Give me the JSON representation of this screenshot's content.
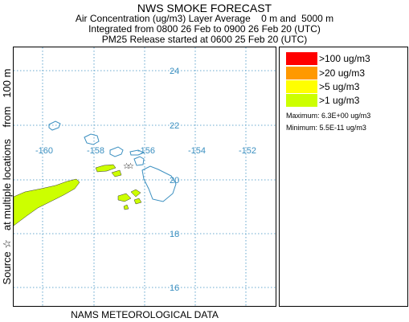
{
  "header": {
    "title": "NWS SMOKE FORECAST",
    "line2": "Air Concentration (ug/m3) Layer Average    0 m and  5000 m",
    "line3": "Integrated from 0800 26 Feb to 0900 26 Feb 20 (UTC)",
    "line4": "PM25 Release started at 0600 25 Feb 20 (UTC)"
  },
  "side_label": "Source ☆   at multiple locations    from   100 m",
  "footer": "NAMS METEOROLOGICAL DATA",
  "map": {
    "lat_labels": [
      "24",
      "22",
      "20",
      "18",
      "16"
    ],
    "lon_labels": [
      "-160",
      "-158",
      "-156",
      "-154",
      "-152"
    ],
    "coastline_color": "#3a8fc0",
    "grid_color": "#3a8fc0",
    "smoke_color": "#ccff00",
    "source_marker": "star-icon"
  },
  "legend": {
    "items": [
      {
        "label": ">100 ug/m3",
        "color": "#ff0000"
      },
      {
        "label": ">20 ug/m3",
        "color": "#ff9900"
      },
      {
        "label": ">5 ug/m3",
        "color": "#ffff00"
      },
      {
        "label": ">1 ug/m3",
        "color": "#ccff00"
      }
    ],
    "maximum": "Maximum: 6.3E+00 ug/m3",
    "minimum": "Minimum: 5.5E-11 ug/m3"
  }
}
